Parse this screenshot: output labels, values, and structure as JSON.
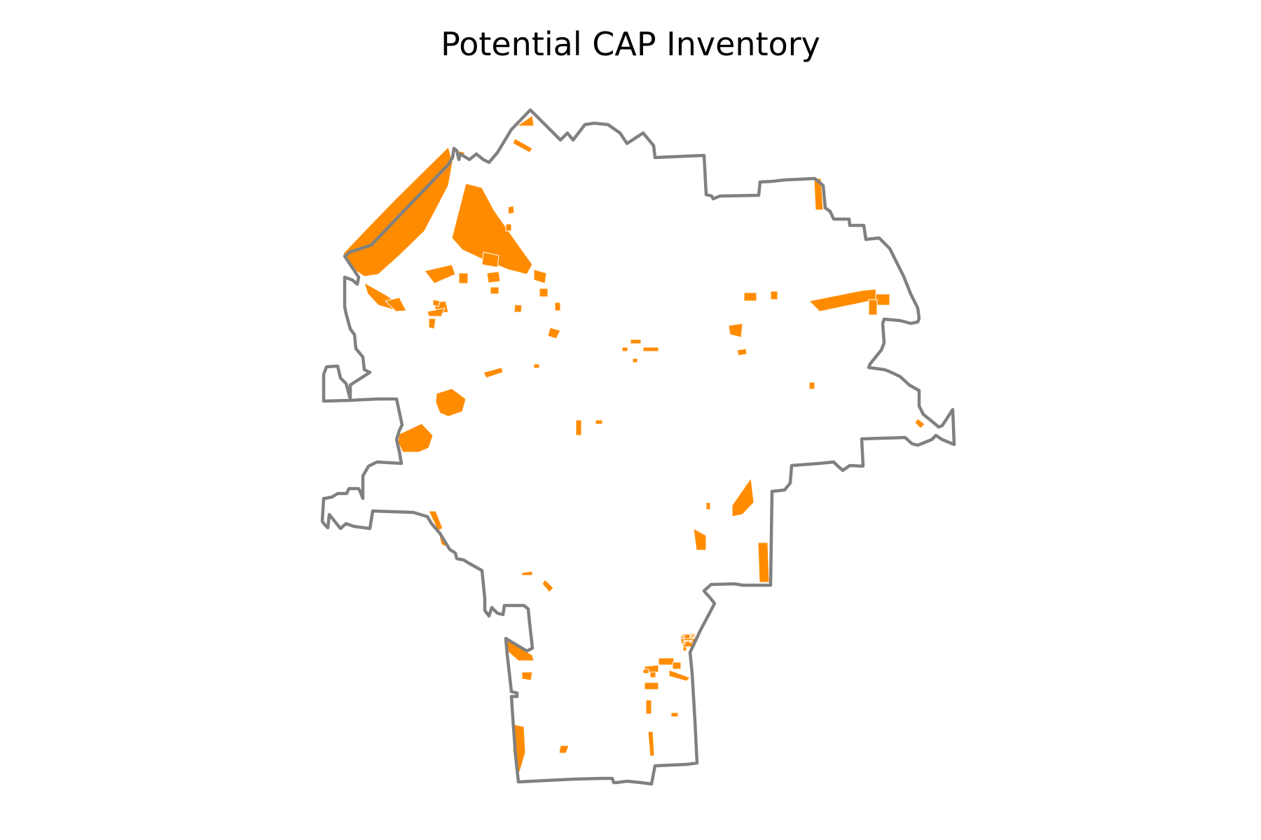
{
  "title": "Potential CAP Inventory",
  "colors": {
    "boundary": "#808080",
    "parcel_fill": "#ff8c00",
    "background": "#ffffff"
  }
}
